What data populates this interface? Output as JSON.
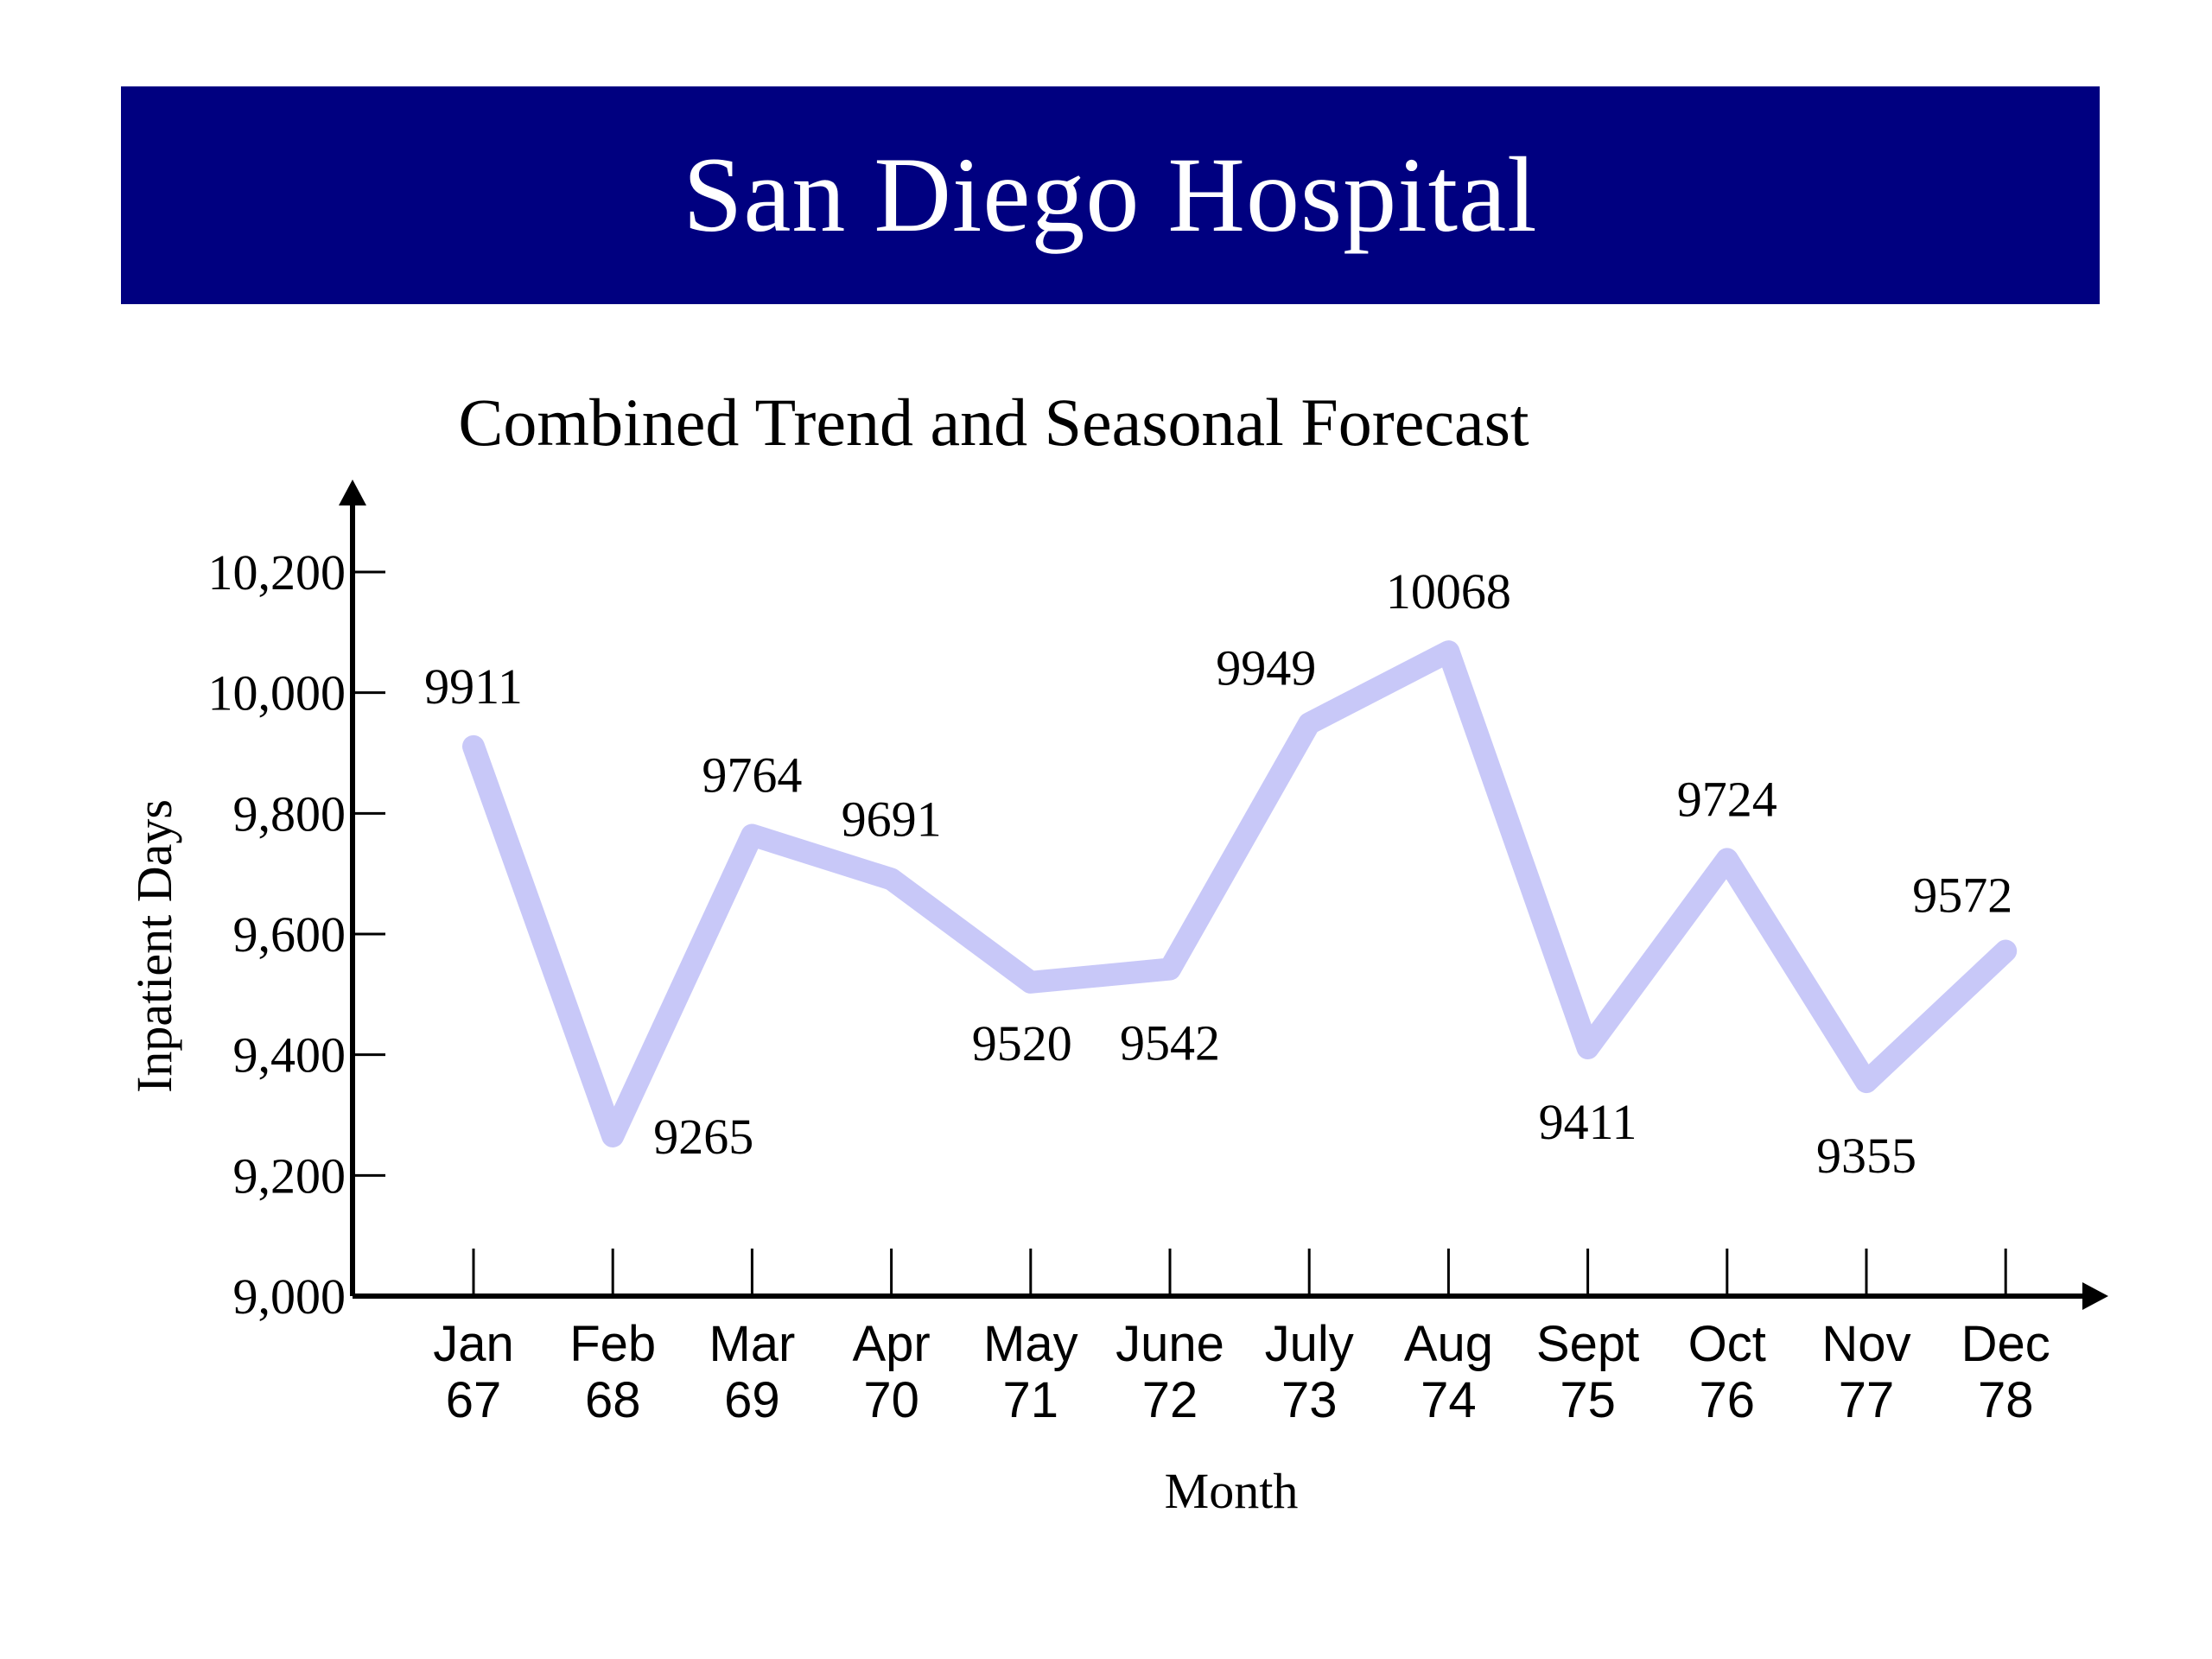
{
  "header": {
    "title": "San Diego Hospital"
  },
  "colors": {
    "banner": "#000080",
    "line": "#c8c8f8",
    "axis": "#000000"
  },
  "chart_data": {
    "type": "line",
    "title": "Combined Trend and Seasonal Forecast",
    "xlabel": "Month",
    "ylabel": "Inpatient Days",
    "ylim": [
      9000,
      10300
    ],
    "yticks": [
      9000,
      9200,
      9400,
      9600,
      9800,
      10000,
      10200
    ],
    "ytick_labels": [
      "9,000",
      "9,200",
      "9,400",
      "9,600",
      "9,800",
      "10,000",
      "10,200"
    ],
    "categories": [
      [
        "Jan",
        "67"
      ],
      [
        "Feb",
        "68"
      ],
      [
        "Mar",
        "69"
      ],
      [
        "Apr",
        "70"
      ],
      [
        "May",
        "71"
      ],
      [
        "June",
        "72"
      ],
      [
        "July",
        "73"
      ],
      [
        "Aug",
        "74"
      ],
      [
        "Sept",
        "75"
      ],
      [
        "Oct",
        "76"
      ],
      [
        "Nov",
        "77"
      ],
      [
        "Dec",
        "78"
      ]
    ],
    "values": [
      9911,
      9265,
      9764,
      9691,
      9520,
      9542,
      9949,
      10068,
      9411,
      9724,
      9355,
      9572
    ],
    "data_labels": [
      "9911",
      "9265",
      "9764",
      "9691",
      "9520",
      "9542",
      "9949",
      "10068",
      "9411",
      "9724",
      "9355",
      "9572"
    ],
    "grid": false,
    "legend": "none"
  }
}
